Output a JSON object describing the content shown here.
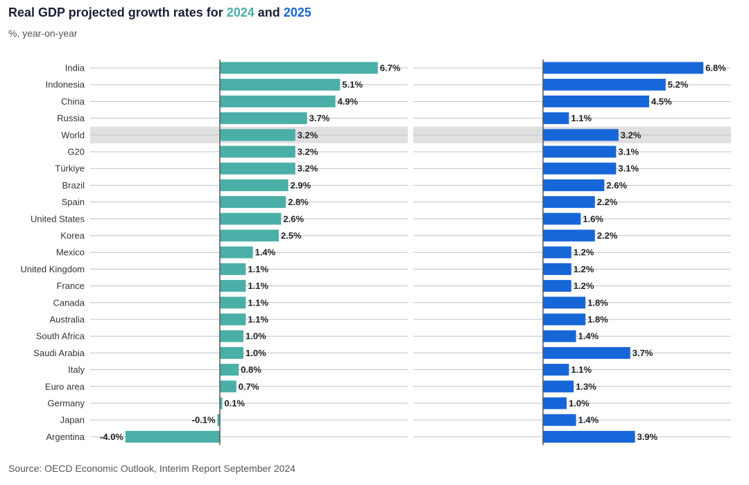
{
  "header": {
    "title_prefix": "Real GDP projected growth rates for ",
    "year_a": "2024",
    "title_mid": " and ",
    "year_b": "2025",
    "subtitle": "%, year-on-year",
    "source": "Source: OECD Economic Outlook, Interim Report September 2024"
  },
  "colors": {
    "series_2024": "#4aafa7",
    "series_2025": "#1766d8",
    "highlight_band": "#e0e0e0",
    "gridline": "#b7c2cf",
    "axis": "#555555"
  },
  "chart_data": {
    "type": "bar",
    "orientation": "horizontal",
    "title": "Real GDP projected growth rates for 2024 and 2025",
    "subtitle": "%, year-on-year",
    "highlight_category": "World",
    "categories": [
      "India",
      "Indonesia",
      "China",
      "Russia",
      "World",
      "G20",
      "Türkiye",
      "Brazil",
      "Spain",
      "United States",
      "Korea",
      "Mexico",
      "United Kingdom",
      "France",
      "Canada",
      "Australia",
      "South Africa",
      "Saudi Arabia",
      "Italy",
      "Euro area",
      "Germany",
      "Japan",
      "Argentina"
    ],
    "series": [
      {
        "name": "2024",
        "values": [
          6.7,
          5.1,
          4.9,
          3.7,
          3.2,
          3.2,
          3.2,
          2.9,
          2.8,
          2.6,
          2.5,
          1.4,
          1.1,
          1.1,
          1.1,
          1.1,
          1.0,
          1.0,
          0.8,
          0.7,
          0.1,
          -0.1,
          -4.0
        ],
        "labels": [
          "6.7%",
          "5.1%",
          "4.9%",
          "3.7%",
          "3.2%",
          "3.2%",
          "3.2%",
          "2.9%",
          "2.8%",
          "2.6%",
          "2.5%",
          "1.4%",
          "1.1%",
          "1.1%",
          "1.1%",
          "1.1%",
          "1.0%",
          "1.0%",
          "0.8%",
          "0.7%",
          "0.1%",
          "-0.1%",
          "-4.0%"
        ]
      },
      {
        "name": "2025",
        "values": [
          6.8,
          5.2,
          4.5,
          1.1,
          3.2,
          3.1,
          3.1,
          2.6,
          2.2,
          1.6,
          2.2,
          1.2,
          1.2,
          1.2,
          1.8,
          1.8,
          1.4,
          3.7,
          1.1,
          1.3,
          1.0,
          1.4,
          3.9
        ],
        "labels": [
          "6.8%",
          "5.2%",
          "4.5%",
          "1.1%",
          "3.2%",
          "3.1%",
          "3.1%",
          "2.6%",
          "2.2%",
          "1.6%",
          "2.2%",
          "1.2%",
          "1.2%",
          "1.2%",
          "1.8%",
          "1.8%",
          "1.4%",
          "3.7%",
          "1.1%",
          "1.3%",
          "1.0%",
          "1.4%",
          "3.9%"
        ]
      }
    ]
  }
}
